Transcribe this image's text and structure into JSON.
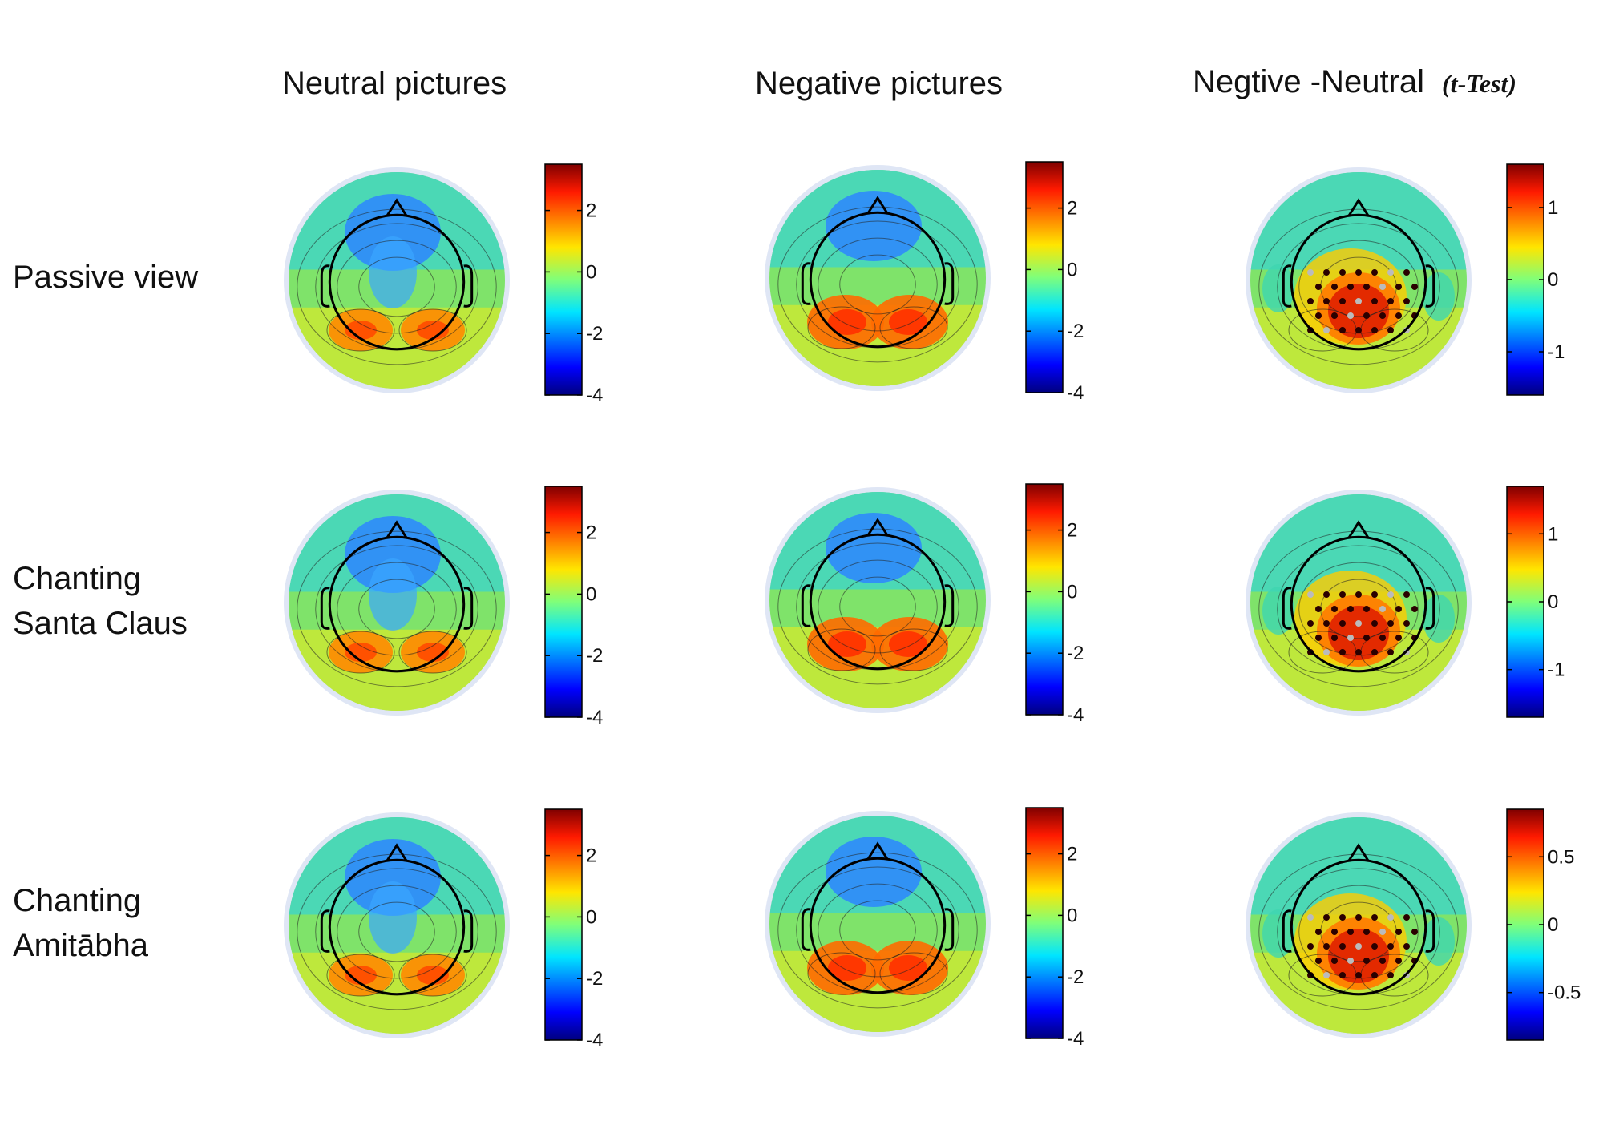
{
  "columns": {
    "neutral": "Neutral pictures",
    "negative": "Negative pictures",
    "difference": "Negtive -Neutral",
    "difference_sub": "(t-Test)"
  },
  "rows": [
    {
      "key": "passive",
      "label_lines": [
        "Passive view"
      ]
    },
    {
      "key": "santa",
      "label_lines": [
        "Chanting",
        "Santa Claus"
      ]
    },
    {
      "key": "amitabha",
      "label_lines": [
        "Chanting",
        "Amitābha"
      ]
    }
  ],
  "colormap": "jet",
  "colorbars": {
    "amplitude": {
      "range": [
        -4,
        3.5
      ],
      "ticks": [
        "2",
        "0",
        "-2",
        "-4"
      ],
      "tick_values": [
        2,
        0,
        -2,
        -4
      ]
    },
    "passive_t": {
      "range": [
        -1.6,
        1.6
      ],
      "ticks": [
        "1",
        "0",
        "-1"
      ],
      "tick_values": [
        1,
        0,
        -1
      ]
    },
    "santa_t": {
      "range": [
        -1.7,
        1.7
      ],
      "ticks": [
        "1",
        "0",
        "-1"
      ],
      "tick_values": [
        1,
        0,
        -1
      ]
    },
    "amitabha_t": {
      "range": [
        -0.85,
        0.85
      ],
      "ticks": [
        "0.5",
        "0",
        "-0.5"
      ],
      "tick_values": [
        0.5,
        0,
        -0.5
      ]
    }
  }
}
